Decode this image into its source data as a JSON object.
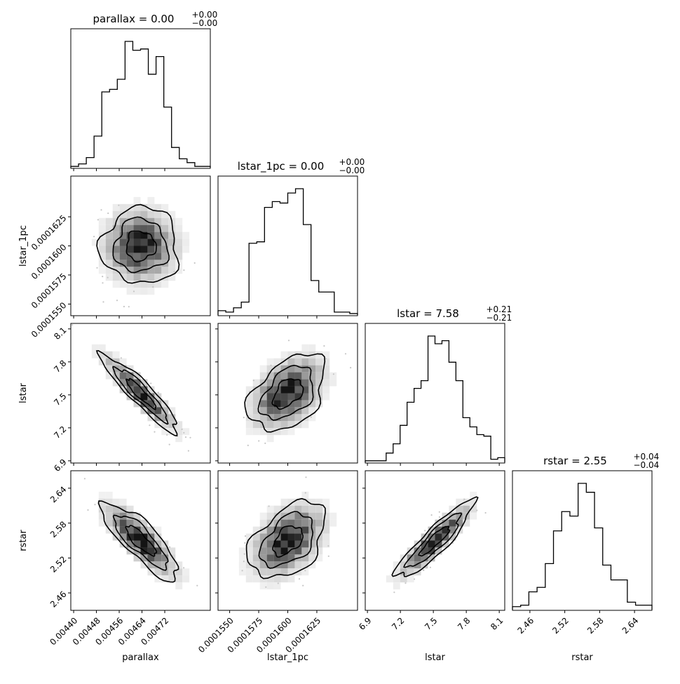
{
  "chart_data": {
    "type": "corner",
    "params": [
      "parallax",
      "lstar_1pc",
      "lstar",
      "rstar"
    ],
    "titles": [
      {
        "param": "parallax",
        "text": "parallax = 0.00",
        "sup": "+0.00",
        "sub": "−0.00"
      },
      {
        "param": "lstar_1pc",
        "text": "lstar_1pc = 0.00",
        "sup": "+0.00",
        "sub": "−0.00"
      },
      {
        "param": "lstar",
        "text": "lstar = 7.58",
        "sup": "+0.21",
        "sub": "−0.21"
      },
      {
        "param": "rstar",
        "text": "rstar = 2.55",
        "sup": "+0.04",
        "sub": "−0.04"
      }
    ],
    "axes": [
      {
        "name": "parallax",
        "range": [
          0.00439,
          0.00488
        ],
        "ticks": [
          0.0044,
          0.00448,
          0.00456,
          0.00464,
          0.00472
        ],
        "tick_labels": [
          "0.00440",
          "0.00448",
          "0.00456",
          "0.00464",
          "0.00472"
        ]
      },
      {
        "name": "lstar_1pc",
        "range": [
          0.000154,
          0.000166
        ],
        "ticks": [
          0.000155,
          0.0001575,
          0.00016,
          0.0001625
        ],
        "tick_labels": [
          "0.0001550",
          "0.0001575",
          "0.0001600",
          "0.0001625"
        ]
      },
      {
        "name": "lstar",
        "range": [
          6.88,
          8.15
        ],
        "ticks": [
          6.9,
          7.2,
          7.5,
          7.8,
          8.1
        ],
        "tick_labels": [
          "6.9",
          "7.2",
          "7.5",
          "7.8",
          "8.1"
        ]
      },
      {
        "name": "rstar",
        "range": [
          2.43,
          2.67
        ],
        "ticks": [
          2.46,
          2.52,
          2.58,
          2.64
        ],
        "tick_labels": [
          "2.46",
          "2.52",
          "2.58",
          "2.64"
        ]
      }
    ],
    "histograms": [
      {
        "param": "parallax",
        "counts": [
          1,
          3,
          8,
          25,
          60,
          62,
          70,
          100,
          93,
          94,
          74,
          88,
          48,
          16,
          7,
          4,
          1,
          1
        ]
      },
      {
        "param": "lstar_1pc",
        "counts": [
          3,
          2,
          5,
          9,
          50,
          51,
          75,
          79,
          78,
          85,
          88,
          63,
          24,
          16,
          16,
          2,
          2,
          1
        ]
      },
      {
        "param": "lstar",
        "counts": [
          1,
          1,
          1,
          6,
          12,
          24,
          39,
          48,
          53,
          82,
          77,
          79,
          65,
          53,
          29,
          23,
          18,
          17,
          2,
          3
        ]
      },
      {
        "param": "rstar",
        "counts": [
          2,
          3,
          12,
          15,
          31,
          53,
          66,
          63,
          85,
          79,
          55,
          30,
          20,
          20,
          5,
          3,
          3
        ]
      }
    ],
    "pairs": [
      {
        "x": "parallax",
        "y": "lstar_1pc",
        "correlation": 0.0
      },
      {
        "x": "parallax",
        "y": "lstar",
        "correlation": -0.92
      },
      {
        "x": "lstar_1pc",
        "y": "lstar",
        "correlation": 0.42
      },
      {
        "x": "parallax",
        "y": "rstar",
        "correlation": -0.82
      },
      {
        "x": "lstar_1pc",
        "y": "rstar",
        "correlation": 0.43
      },
      {
        "x": "lstar",
        "y": "rstar",
        "correlation": 0.9
      }
    ],
    "grid": false,
    "legend": "none"
  }
}
